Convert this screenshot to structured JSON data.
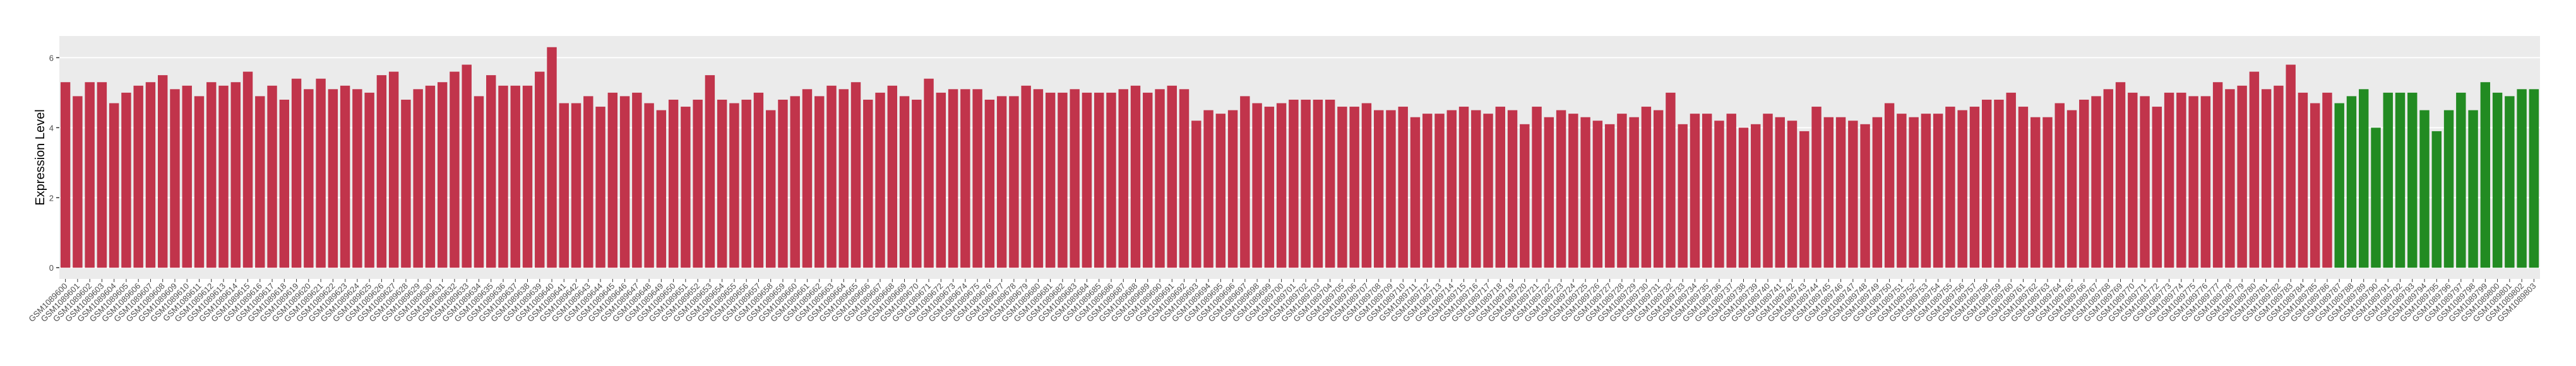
{
  "chart_data": {
    "type": "bar",
    "y_label": "Expression Level",
    "ylim": [
      -0.32,
      6.62
    ],
    "yticks": [
      0,
      2,
      4,
      6
    ],
    "grid": true,
    "categories": [
      "GSM1089600",
      "GSM1089601",
      "GSM1089602",
      "GSM1089603",
      "GSM1089604",
      "GSM1089605",
      "GSM1089606",
      "GSM1089607",
      "GSM1089608",
      "GSM1089609",
      "GSM1089610",
      "GSM1089611",
      "GSM1089612",
      "GSM1089613",
      "GSM1089614",
      "GSM1089615",
      "GSM1089616",
      "GSM1089617",
      "GSM1089618",
      "GSM1089619",
      "GSM1089620",
      "GSM1089621",
      "GSM1089622",
      "GSM1089623",
      "GSM1089624",
      "GSM1089625",
      "GSM1089626",
      "GSM1089627",
      "GSM1089628",
      "GSM1089629",
      "GSM1089630",
      "GSM1089631",
      "GSM1089632",
      "GSM1089633",
      "GSM1089634",
      "GSM1089635",
      "GSM1089636",
      "GSM1089637",
      "GSM1089638",
      "GSM1089639",
      "GSM1089640",
      "GSM1089641",
      "GSM1089642",
      "GSM1089643",
      "GSM1089644",
      "GSM1089645",
      "GSM1089646",
      "GSM1089647",
      "GSM1089648",
      "GSM1089649",
      "GSM1089650",
      "GSM1089651",
      "GSM1089652",
      "GSM1089653",
      "GSM1089654",
      "GSM1089655",
      "GSM1089656",
      "GSM1089657",
      "GSM1089658",
      "GSM1089659",
      "GSM1089660",
      "GSM1089661",
      "GSM1089662",
      "GSM1089663",
      "GSM1089664",
      "GSM1089665",
      "GSM1089666",
      "GSM1089667",
      "GSM1089668",
      "GSM1089669",
      "GSM1089670",
      "GSM1089671",
      "GSM1089672",
      "GSM1089673",
      "GSM1089674",
      "GSM1089675",
      "GSM1089676",
      "GSM1089677",
      "GSM1089678",
      "GSM1089679",
      "GSM1089680",
      "GSM1089681",
      "GSM1089682",
      "GSM1089683",
      "GSM1089684",
      "GSM1089685",
      "GSM1089686",
      "GSM1089687",
      "GSM1089688",
      "GSM1089689",
      "GSM1089690",
      "GSM1089691",
      "GSM1089692",
      "GSM1089693",
      "GSM1089694",
      "GSM1089695",
      "GSM1089696",
      "GSM1089697",
      "GSM1089698",
      "GSM1089699",
      "GSM1089700",
      "GSM1089701",
      "GSM1089702",
      "GSM1089703",
      "GSM1089704",
      "GSM1089705",
      "GSM1089706",
      "GSM1089707",
      "GSM1089708",
      "GSM1089709",
      "GSM1089710",
      "GSM1089711",
      "GSM1089712",
      "GSM1089713",
      "GSM1089714",
      "GSM1089715",
      "GSM1089716",
      "GSM1089717",
      "GSM1089718",
      "GSM1089719",
      "GSM1089720",
      "GSM1089721",
      "GSM1089722",
      "GSM1089723",
      "GSM1089724",
      "GSM1089725",
      "GSM1089726",
      "GSM1089727",
      "GSM1089728",
      "GSM1089729",
      "GSM1089730",
      "GSM1089731",
      "GSM1089732",
      "GSM1089733",
      "GSM1089734",
      "GSM1089735",
      "GSM1089736",
      "GSM1089737",
      "GSM1089738",
      "GSM1089739",
      "GSM1089740",
      "GSM1089741",
      "GSM1089742",
      "GSM1089743",
      "GSM1089744",
      "GSM1089745",
      "GSM1089746",
      "GSM1089747",
      "GSM1089748",
      "GSM1089749",
      "GSM1089750",
      "GSM1089751",
      "GSM1089752",
      "GSM1089753",
      "GSM1089754",
      "GSM1089755",
      "GSM1089756",
      "GSM1089757",
      "GSM1089758",
      "GSM1089759",
      "GSM1089760",
      "GSM1089761",
      "GSM1089762",
      "GSM1089763",
      "GSM1089764",
      "GSM1089765",
      "GSM1089766",
      "GSM1089767",
      "GSM1089768",
      "GSM1089769",
      "GSM1089770",
      "GSM1089771",
      "GSM1089772",
      "GSM1089773",
      "GSM1089774",
      "GSM1089775",
      "GSM1089776",
      "GSM1089777",
      "GSM1089778",
      "GSM1089779",
      "GSM1089780",
      "GSM1089781",
      "GSM1089782",
      "GSM1089783",
      "GSM1089784",
      "GSM1089785",
      "GSM1089786",
      "GSM1089787",
      "GSM1089788",
      "GSM1089789",
      "GSM1089790",
      "GSM1089791",
      "GSM1089792",
      "GSM1089793",
      "GSM1089794",
      "GSM1089795",
      "GSM1089796",
      "GSM1089797",
      "GSM1089798",
      "GSM1089799",
      "GSM1089800",
      "GSM1089801",
      "GSM1089802",
      "GSM1089803"
    ],
    "values": [
      5.3,
      4.9,
      5.3,
      5.3,
      4.7,
      5.0,
      5.2,
      5.3,
      5.5,
      5.1,
      5.2,
      4.9,
      5.3,
      5.2,
      5.3,
      5.6,
      4.9,
      5.2,
      4.8,
      5.4,
      5.1,
      5.4,
      5.1,
      5.2,
      5.1,
      5.0,
      5.5,
      5.6,
      4.8,
      5.1,
      5.2,
      5.3,
      5.6,
      5.8,
      4.9,
      5.5,
      5.2,
      5.2,
      5.2,
      5.6,
      6.3,
      4.7,
      4.7,
      4.9,
      4.6,
      5.0,
      4.9,
      5.0,
      4.7,
      4.5,
      4.8,
      4.6,
      4.8,
      5.5,
      4.8,
      4.7,
      4.8,
      5.0,
      4.5,
      4.8,
      4.9,
      5.1,
      4.9,
      5.2,
      5.1,
      5.3,
      4.8,
      5.0,
      5.2,
      4.9,
      4.8,
      5.4,
      5.0,
      5.1,
      5.1,
      5.1,
      4.8,
      4.9,
      4.9,
      5.2,
      5.1,
      5.0,
      5.0,
      5.1,
      5.0,
      5.0,
      5.0,
      5.1,
      5.2,
      5.0,
      5.1,
      5.2,
      5.1,
      4.2,
      4.5,
      4.4,
      4.5,
      4.9,
      4.7,
      4.6,
      4.7,
      4.8,
      4.8,
      4.8,
      4.8,
      4.6,
      4.6,
      4.7,
      4.5,
      4.5,
      4.6,
      4.3,
      4.4,
      4.4,
      4.5,
      4.6,
      4.5,
      4.4,
      4.6,
      4.5,
      4.1,
      4.6,
      4.3,
      4.5,
      4.4,
      4.3,
      4.2,
      4.1,
      4.4,
      4.3,
      4.6,
      4.5,
      5.0,
      4.1,
      4.4,
      4.4,
      4.2,
      4.4,
      4.0,
      4.1,
      4.4,
      4.3,
      4.2,
      3.9,
      4.6,
      4.3,
      4.3,
      4.2,
      4.1,
      4.3,
      4.7,
      4.4,
      4.3,
      4.4,
      4.4,
      4.6,
      4.5,
      4.6,
      4.8,
      4.8,
      5.0,
      4.6,
      4.3,
      4.3,
      4.7,
      4.5,
      4.8,
      4.9,
      5.1,
      5.3,
      5.0,
      4.9,
      4.6,
      5.0,
      5.0,
      4.9,
      4.9,
      5.3,
      5.1,
      5.2,
      5.6,
      5.1,
      5.2,
      5.8,
      5.0,
      4.7,
      5.0,
      4.7,
      4.9,
      5.1,
      4.0,
      5.0,
      5.0,
      5.0,
      4.5,
      3.9,
      4.5,
      5.0,
      4.5,
      5.3,
      5.0,
      4.9,
      5.1,
      5.1
    ],
    "colors": [
      "#c1344b",
      "#c1344b",
      "#c1344b",
      "#c1344b",
      "#c1344b",
      "#c1344b",
      "#c1344b",
      "#c1344b",
      "#c1344b",
      "#c1344b",
      "#c1344b",
      "#c1344b",
      "#c1344b",
      "#c1344b",
      "#c1344b",
      "#c1344b",
      "#c1344b",
      "#c1344b",
      "#c1344b",
      "#c1344b",
      "#c1344b",
      "#c1344b",
      "#c1344b",
      "#c1344b",
      "#c1344b",
      "#c1344b",
      "#c1344b",
      "#c1344b",
      "#c1344b",
      "#c1344b",
      "#c1344b",
      "#c1344b",
      "#c1344b",
      "#c1344b",
      "#c1344b",
      "#c1344b",
      "#c1344b",
      "#c1344b",
      "#c1344b",
      "#c1344b",
      "#c1344b",
      "#c1344b",
      "#c1344b",
      "#c1344b",
      "#c1344b",
      "#c1344b",
      "#c1344b",
      "#c1344b",
      "#c1344b",
      "#c1344b",
      "#c1344b",
      "#c1344b",
      "#c1344b",
      "#c1344b",
      "#c1344b",
      "#c1344b",
      "#c1344b",
      "#c1344b",
      "#c1344b",
      "#c1344b",
      "#c1344b",
      "#c1344b",
      "#c1344b",
      "#c1344b",
      "#c1344b",
      "#c1344b",
      "#c1344b",
      "#c1344b",
      "#c1344b",
      "#c1344b",
      "#c1344b",
      "#c1344b",
      "#c1344b",
      "#c1344b",
      "#c1344b",
      "#c1344b",
      "#c1344b",
      "#c1344b",
      "#c1344b",
      "#c1344b",
      "#c1344b",
      "#c1344b",
      "#c1344b",
      "#c1344b",
      "#c1344b",
      "#c1344b",
      "#c1344b",
      "#c1344b",
      "#c1344b",
      "#c1344b",
      "#c1344b",
      "#c1344b",
      "#c1344b",
      "#c1344b",
      "#c1344b",
      "#c1344b",
      "#c1344b",
      "#c1344b",
      "#c1344b",
      "#c1344b",
      "#c1344b",
      "#c1344b",
      "#c1344b",
      "#c1344b",
      "#c1344b",
      "#c1344b",
      "#c1344b",
      "#c1344b",
      "#c1344b",
      "#c1344b",
      "#c1344b",
      "#c1344b",
      "#c1344b",
      "#c1344b",
      "#c1344b",
      "#c1344b",
      "#c1344b",
      "#c1344b",
      "#c1344b",
      "#c1344b",
      "#c1344b",
      "#c1344b",
      "#c1344b",
      "#c1344b",
      "#c1344b",
      "#c1344b",
      "#c1344b",
      "#c1344b",
      "#c1344b",
      "#c1344b",
      "#c1344b",
      "#c1344b",
      "#c1344b",
      "#c1344b",
      "#c1344b",
      "#c1344b",
      "#c1344b",
      "#c1344b",
      "#c1344b",
      "#c1344b",
      "#c1344b",
      "#c1344b",
      "#c1344b",
      "#c1344b",
      "#c1344b",
      "#c1344b",
      "#c1344b",
      "#c1344b",
      "#c1344b",
      "#c1344b",
      "#c1344b",
      "#c1344b",
      "#c1344b",
      "#c1344b",
      "#c1344b",
      "#c1344b",
      "#c1344b",
      "#c1344b",
      "#c1344b",
      "#c1344b",
      "#c1344b",
      "#c1344b",
      "#c1344b",
      "#c1344b",
      "#c1344b",
      "#c1344b",
      "#c1344b",
      "#c1344b",
      "#c1344b",
      "#c1344b",
      "#c1344b",
      "#c1344b",
      "#c1344b",
      "#c1344b",
      "#c1344b",
      "#c1344b",
      "#c1344b",
      "#c1344b",
      "#c1344b",
      "#c1344b",
      "#c1344b",
      "#c1344b",
      "#c1344b",
      "#c1344b",
      "#c1344b",
      "#c1344b",
      "#c1344b",
      "#228b22",
      "#228b22",
      "#228b22",
      "#228b22",
      "#228b22",
      "#228b22",
      "#228b22",
      "#228b22",
      "#228b22",
      "#228b22",
      "#228b22",
      "#228b22",
      "#228b22",
      "#228b22",
      "#228b22",
      "#228b22",
      "#228b22",
      "#228b22",
      "#228b22",
      "#228b22",
      "#228b22"
    ]
  }
}
